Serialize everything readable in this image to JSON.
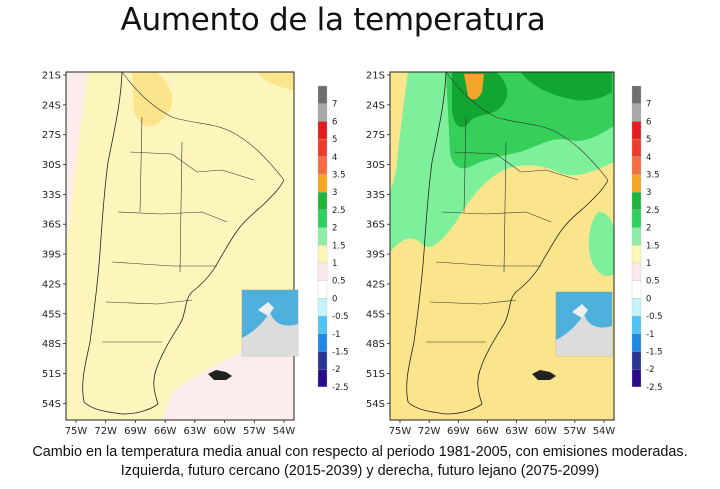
{
  "title": "Aumento de la temperatura",
  "caption": {
    "line1": "Cambio en la temperatura media anual con respecto al periodo 1981-2005, con emisiones moderadas.",
    "line2": "Izquierda, futuro cercano (2015-2039) y derecha, futuro lejano (2075-2099)"
  },
  "maps": [
    {
      "id": "near-future",
      "lat_ticks": [
        "21S",
        "24S",
        "27S",
        "30S",
        "33S",
        "36S",
        "39S",
        "42S",
        "45S",
        "48S",
        "51S",
        "54S"
      ],
      "lon_ticks": [
        "75W",
        "72W",
        "69W",
        "66W",
        "63W",
        "60W",
        "57W",
        "54W"
      ],
      "dominant_class": "0.5 a 1",
      "secondary_classes": [
        "1 a 1.5",
        "0 a 0.5"
      ]
    },
    {
      "id": "far-future",
      "lat_ticks": [
        "21S",
        "24S",
        "27S",
        "30S",
        "33S",
        "36S",
        "39S",
        "42S",
        "45S",
        "48S",
        "51S",
        "54S"
      ],
      "lon_ticks": [
        "75W",
        "72W",
        "69W",
        "66W",
        "63W",
        "60W",
        "57W",
        "54W"
      ],
      "dominant_class": "1 a 1.5",
      "secondary_classes": [
        "1.5 a 2",
        "2 a 2.5",
        "2.5 a 3"
      ]
    }
  ],
  "colorbar": {
    "labels": [
      "7",
      "6",
      "5",
      "4",
      "3.5",
      "3",
      "2.5",
      "2",
      "1.5",
      "1",
      "0.5",
      "0",
      "-0.5",
      "-1",
      "-1.5",
      "-2",
      "-2.5"
    ],
    "colors": [
      "#6e6e6e",
      "#a8a8a8",
      "#e41a1c",
      "#ef3b2c",
      "#f46d43",
      "#f5a623",
      "#1fb53a",
      "#2ed15e",
      "#8eeea8",
      "#fdf7b6",
      "#fbe9e9",
      "#ffffff",
      "#c6f2f9",
      "#4fc3f7",
      "#1e88e5",
      "#283593",
      "#2b0a8c"
    ]
  },
  "colors": {
    "class_0_to_05": "#fdecec",
    "class_05_to_1": "#fcf6bd",
    "class_1_to_15": "#fbe58c",
    "class_15_to_2": "#7ef09b",
    "class_2_to_25": "#35cf5a",
    "class_25_to_3": "#11a531",
    "class_3_to_35": "#f2a72a",
    "ocean": "#ffffff",
    "inset_sea": "#4db0dd",
    "inset_land": "#dcdcdc"
  }
}
